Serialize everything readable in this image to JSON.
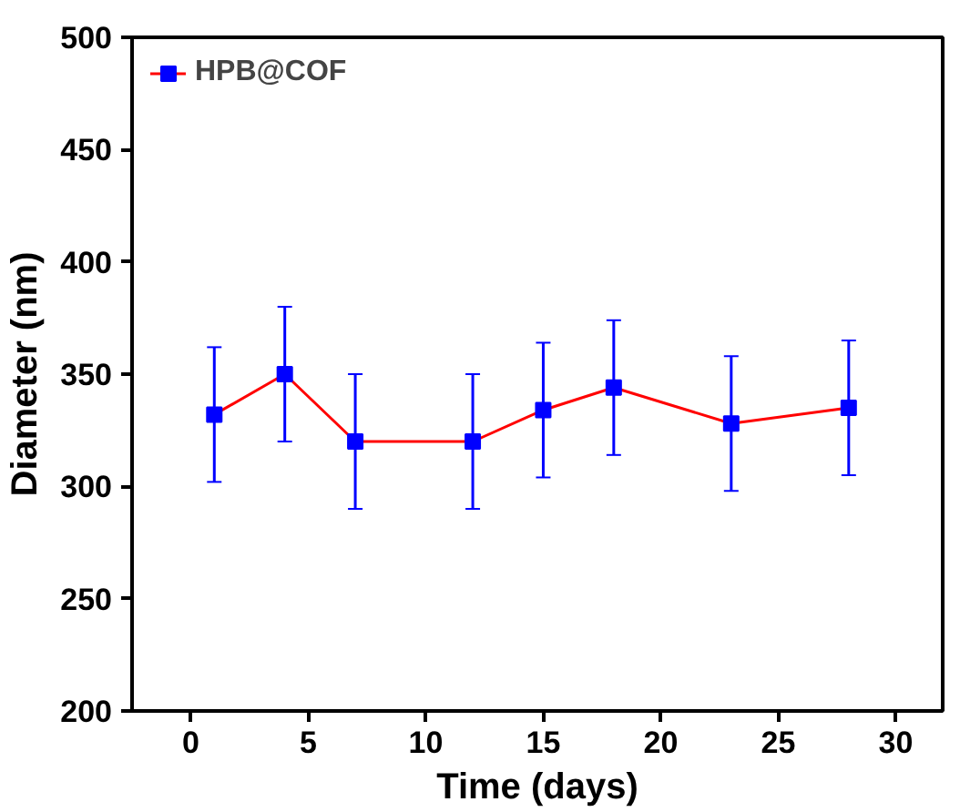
{
  "chart_data": {
    "type": "line",
    "xlabel": "Time (days)",
    "ylabel": "Diameter (nm)",
    "x": [
      1,
      4,
      7,
      12,
      15,
      18,
      23,
      28
    ],
    "series": [
      {
        "name": "HPB@COF",
        "color": "#ff0000",
        "colors": [
          "#0000ff",
          "#0000ff",
          "#0000ff",
          "#0000ff",
          "#0000ff",
          "#0000ff",
          "#0000ff",
          "#0000ff"
        ],
        "values": [
          332,
          350,
          320,
          320,
          334,
          344,
          328,
          335
        ],
        "errors": [
          30,
          30,
          30,
          30,
          30,
          30,
          30,
          30
        ]
      }
    ],
    "xlim": [
      -2.5,
      32
    ],
    "xticks": [
      0,
      5,
      10,
      15,
      20,
      25,
      30
    ],
    "ylim": [
      200,
      500
    ],
    "yticks": [
      200,
      250,
      300,
      350,
      400,
      450,
      500
    ],
    "marker": "square",
    "line_style": "solid",
    "legend": "top left",
    "grid": false
  }
}
